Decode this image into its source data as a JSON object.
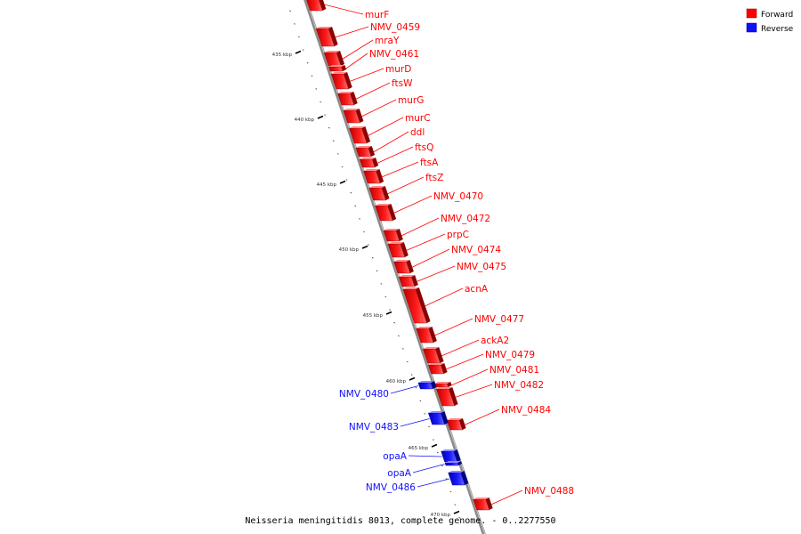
{
  "diagram": {
    "caption": "Neisseria meningitidis 8013, complete genome. - 0..2277550",
    "legend": [
      {
        "label": "Forward",
        "color": "#ff0000"
      },
      {
        "label": "Reverse",
        "color": "#1010ff"
      }
    ],
    "ticks": [
      "435 kbp",
      "440 kbp",
      "445 kbp",
      "450 kbp",
      "455 kbp",
      "460 kbp",
      "465 kbp",
      "470 kbp"
    ],
    "genes": [
      {
        "name": "murF",
        "strand": "forward"
      },
      {
        "name": "NMV_0459",
        "strand": "forward"
      },
      {
        "name": "mraY",
        "strand": "forward"
      },
      {
        "name": "NMV_0461",
        "strand": "forward"
      },
      {
        "name": "murD",
        "strand": "forward"
      },
      {
        "name": "ftsW",
        "strand": "forward"
      },
      {
        "name": "murG",
        "strand": "forward"
      },
      {
        "name": "murC",
        "strand": "forward"
      },
      {
        "name": "ddl",
        "strand": "forward"
      },
      {
        "name": "ftsQ",
        "strand": "forward"
      },
      {
        "name": "ftsA",
        "strand": "forward"
      },
      {
        "name": "ftsZ",
        "strand": "forward"
      },
      {
        "name": "NMV_0470",
        "strand": "forward"
      },
      {
        "name": "NMV_0472",
        "strand": "forward"
      },
      {
        "name": "prpC",
        "strand": "forward"
      },
      {
        "name": "NMV_0474",
        "strand": "forward"
      },
      {
        "name": "NMV_0475",
        "strand": "forward"
      },
      {
        "name": "acnA",
        "strand": "forward"
      },
      {
        "name": "NMV_0477",
        "strand": "forward"
      },
      {
        "name": "ackA2",
        "strand": "forward"
      },
      {
        "name": "NMV_0479",
        "strand": "forward"
      },
      {
        "name": "NMV_0481",
        "strand": "forward"
      },
      {
        "name": "NMV_0482",
        "strand": "forward"
      },
      {
        "name": "NMV_0484",
        "strand": "forward"
      },
      {
        "name": "NMV_0488",
        "strand": "forward"
      },
      {
        "name": "NMV_0480",
        "strand": "reverse"
      },
      {
        "name": "NMV_0483",
        "strand": "reverse"
      },
      {
        "name": "opaA",
        "strand": "reverse"
      },
      {
        "name": "opaA",
        "strand": "reverse"
      },
      {
        "name": "NMV_0486",
        "strand": "reverse"
      }
    ]
  }
}
